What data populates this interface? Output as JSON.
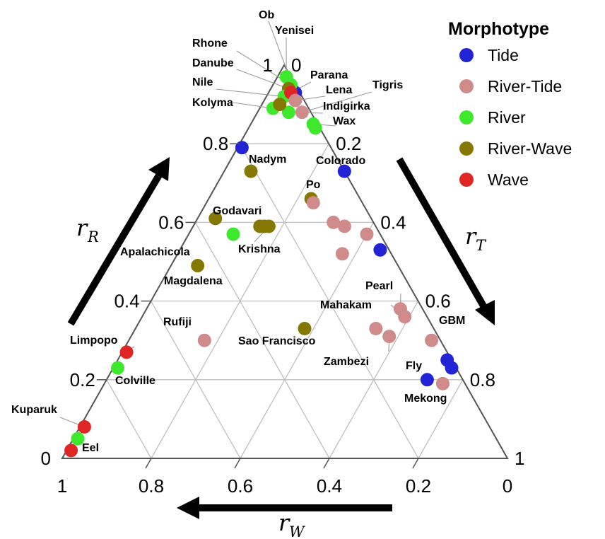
{
  "chart_data": {
    "type": "scatter",
    "subtype": "ternary",
    "axes": {
      "r_R": {
        "symbol": "r",
        "subscript": "R",
        "ticks": [
          "0",
          "0.2",
          "0.4",
          "0.6",
          "0.8",
          "1"
        ],
        "tick_values": [
          0,
          0.2,
          0.4,
          0.6,
          0.8,
          1
        ]
      },
      "r_T": {
        "symbol": "r",
        "subscript": "T",
        "ticks": [
          "0",
          "0.2",
          "0.4",
          "0.6",
          "0.8",
          "1"
        ],
        "tick_values": [
          0,
          0.2,
          0.4,
          0.6,
          0.8,
          1
        ]
      },
      "r_W": {
        "symbol": "r",
        "subscript": "W",
        "ticks": [
          "1",
          "0.8",
          "0.6",
          "0.4",
          "0.2",
          "0"
        ],
        "tick_values": [
          1,
          0.8,
          0.6,
          0.4,
          0.2,
          0
        ]
      }
    },
    "grid": true,
    "legend": {
      "title": "Morphotype",
      "position": "top-right",
      "entries": [
        {
          "key": "Tide",
          "label": "Tide",
          "color": "#2323d6"
        },
        {
          "key": "RiverTide",
          "label": "River-Tide",
          "color": "#cf8a8a"
        },
        {
          "key": "River",
          "label": "River",
          "color": "#3ee82c"
        },
        {
          "key": "RiverWave",
          "label": "River-Wave",
          "color": "#857800"
        },
        {
          "key": "Wave",
          "label": "Wave",
          "color": "#e02525"
        }
      ]
    },
    "points": [
      {
        "label": "Ob",
        "type": "Tide",
        "r_R": 0.93,
        "r_T": 0.06
      },
      {
        "label": "Yenisei",
        "type": "River",
        "r_R": 0.97,
        "r_T": 0.02
      },
      {
        "label": "Rhone",
        "type": "River",
        "r_R": 0.95,
        "r_T": 0.04
      },
      {
        "label": "Danube",
        "type": "RiverWave",
        "r_R": 0.94,
        "r_T": 0.04
      },
      {
        "label": "Nile",
        "type": "River",
        "r_R": 0.92,
        "r_T": 0.04
      },
      {
        "label": "Kolyma",
        "type": "River",
        "r_R": 0.89,
        "r_T": 0.03
      },
      {
        "label": "Parana",
        "type": "Wave",
        "r_R": 0.93,
        "r_T": 0.05
      },
      {
        "label": "Lena",
        "type": "RiverTide",
        "r_R": 0.91,
        "r_T": 0.07
      },
      {
        "label": "Tigris",
        "type": "RiverTide",
        "r_R": 0.88,
        "r_T": 0.1
      },
      {
        "label": "Indigirka",
        "type": "River",
        "r_R": 0.88,
        "r_T": 0.07
      },
      {
        "label": "Wax",
        "type": "River",
        "r_R": 0.85,
        "r_T": 0.14
      },
      {
        "label": "",
        "type": "RiverWave",
        "r_R": 0.9,
        "r_T": 0.04
      },
      {
        "label": "",
        "type": "River",
        "r_R": 0.84,
        "r_T": 0.15
      },
      {
        "label": "Nadym",
        "type": "Tide",
        "r_R": 0.79,
        "r_T": 0.01
      },
      {
        "label": "Colorado",
        "type": "Tide",
        "r_R": 0.73,
        "r_T": 0.27
      },
      {
        "label": "",
        "type": "RiverWave",
        "r_R": 0.73,
        "r_T": 0.06
      },
      {
        "label": "Po",
        "type": "RiverWave",
        "r_R": 0.66,
        "r_T": 0.23
      },
      {
        "label": "",
        "type": "RiverTide",
        "r_R": 0.65,
        "r_T": 0.24
      },
      {
        "label": "Godavari",
        "type": "RiverWave",
        "r_R": 0.59,
        "r_T": 0.15
      },
      {
        "label": "",
        "type": "RiverWave",
        "r_R": 0.59,
        "r_T": 0.16
      },
      {
        "label": "",
        "type": "RiverWave",
        "r_R": 0.61,
        "r_T": 0.04
      },
      {
        "label": "Krishna",
        "type": "RiverWave",
        "r_R": 0.59,
        "r_T": 0.17
      },
      {
        "label": "",
        "type": "RiverTide",
        "r_R": 0.6,
        "r_T": 0.31
      },
      {
        "label": "",
        "type": "RiverTide",
        "r_R": 0.59,
        "r_T": 0.34
      },
      {
        "label": "",
        "type": "RiverTide",
        "r_R": 0.57,
        "r_T": 0.4
      },
      {
        "label": "",
        "type": "Tide",
        "r_R": 0.53,
        "r_T": 0.45
      },
      {
        "label": "Apalachicola",
        "type": "River",
        "r_R": 0.57,
        "r_T": 0.1
      },
      {
        "label": "",
        "type": "RiverTide",
        "r_R": 0.52,
        "r_T": 0.37
      },
      {
        "label": "Magdalena",
        "type": "RiverWave",
        "r_R": 0.49,
        "r_T": 0.06
      },
      {
        "label": "Pearl",
        "type": "RiverTide",
        "r_R": 0.38,
        "r_T": 0.57
      },
      {
        "label": "Mahakam",
        "type": "RiverTide",
        "r_R": 0.36,
        "r_T": 0.59
      },
      {
        "label": "",
        "type": "RiverTide",
        "r_R": 0.33,
        "r_T": 0.54
      },
      {
        "label": "Zambezi",
        "type": "RiverTide",
        "r_R": 0.31,
        "r_T": 0.58
      },
      {
        "label": "Rufiji",
        "type": "RiverTide",
        "r_R": 0.3,
        "r_T": 0.17
      },
      {
        "label": "Sao Francisco",
        "type": "RiverWave",
        "r_R": 0.33,
        "r_T": 0.38
      },
      {
        "label": "GBM",
        "type": "RiverTide",
        "r_R": 0.3,
        "r_T": 0.68
      },
      {
        "label": "",
        "type": "Tide",
        "r_R": 0.25,
        "r_T": 0.74
      },
      {
        "label": "",
        "type": "Tide",
        "r_R": 0.23,
        "r_T": 0.76
      },
      {
        "label": "Fly",
        "type": "Tide",
        "r_R": 0.2,
        "r_T": 0.72
      },
      {
        "label": "Mekong",
        "type": "RiverTide",
        "r_R": 0.19,
        "r_T": 0.76
      },
      {
        "label": "Limpopo",
        "type": "Wave",
        "r_R": 0.27,
        "r_T": 0.01
      },
      {
        "label": "Colville",
        "type": "River",
        "r_R": 0.23,
        "r_T": 0.01
      },
      {
        "label": "Kuparuk",
        "type": "Wave",
        "r_R": 0.08,
        "r_T": 0.01
      },
      {
        "label": "Eel",
        "type": "River",
        "r_R": 0.05,
        "r_T": 0.01
      },
      {
        "label": "",
        "type": "Wave",
        "r_R": 0.02,
        "r_T": 0.01
      }
    ]
  }
}
